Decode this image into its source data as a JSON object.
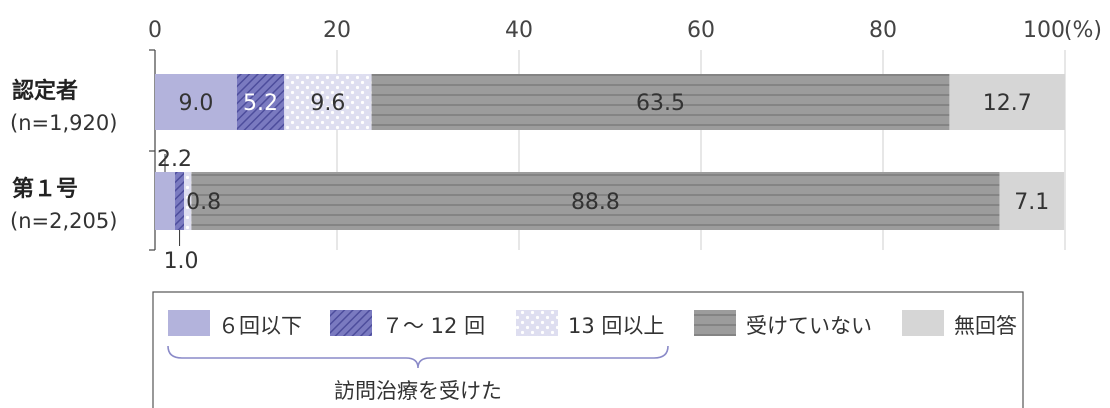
{
  "chart_data": {
    "type": "bar",
    "orientation": "horizontal",
    "stacked": true,
    "xlim": [
      0,
      100
    ],
    "x_ticks": [
      "0",
      "20",
      "40",
      "60",
      "80",
      "100"
    ],
    "unit_label": "(%)",
    "grid": true,
    "categories": [
      {
        "name": "認定者",
        "n": "(n=1,920)"
      },
      {
        "name": "第１号",
        "n": "(n=2,205)"
      }
    ],
    "series": [
      {
        "name": "６回以下",
        "color": "#b3b3dc",
        "pattern": "solid",
        "values": [
          9.0,
          2.2
        ],
        "labels": [
          "9.0",
          "2.2"
        ]
      },
      {
        "name": "７～ 12 回",
        "color": "#6d6db8",
        "pattern": "hatch",
        "values": [
          5.2,
          1.0
        ],
        "labels": [
          "5.2",
          "1.0"
        ]
      },
      {
        "name": "13 回以上",
        "color": "#dcdcef",
        "pattern": "dots",
        "values": [
          9.6,
          0.8
        ],
        "labels": [
          "9.6",
          "0.8"
        ]
      },
      {
        "name": "受けていない",
        "color": "#9a9a9a",
        "pattern": "hlines",
        "values": [
          63.5,
          88.8
        ],
        "labels": [
          "63.5",
          "88.8"
        ]
      },
      {
        "name": "無回答",
        "color": "#d6d6d6",
        "pattern": "solid",
        "values": [
          12.7,
          7.1
        ],
        "labels": [
          "12.7",
          "7.1"
        ]
      }
    ],
    "legend_position": "bottom",
    "legend_bracket_label": "訪問治療を受けた"
  }
}
